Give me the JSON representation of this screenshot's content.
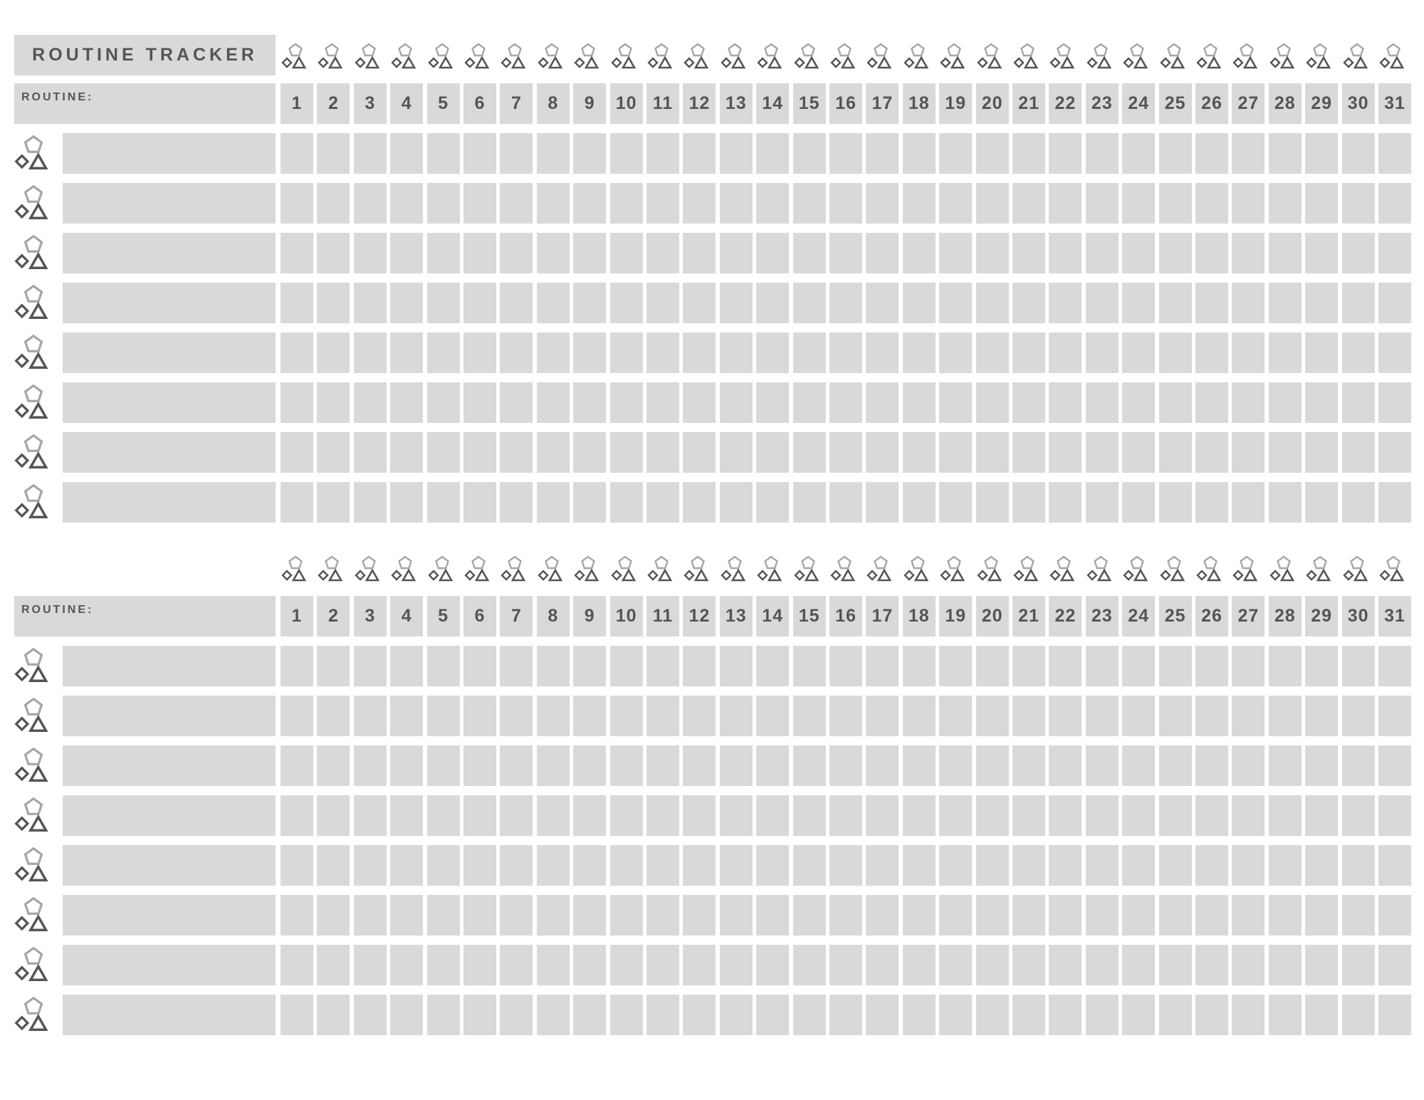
{
  "title": "ROUTINE TRACKER",
  "icons": {
    "pentagon": "pentagon-icon",
    "diamond": "diamond-icon",
    "triangle": "triangle-icon",
    "light_color": "#a6a6a6",
    "dark_color": "#555555"
  },
  "sections": [
    {
      "routine_label": "ROUTINE:",
      "days": [
        "1",
        "2",
        "3",
        "4",
        "5",
        "6",
        "7",
        "8",
        "9",
        "10",
        "11",
        "12",
        "13",
        "14",
        "15",
        "16",
        "17",
        "18",
        "19",
        "20",
        "21",
        "22",
        "23",
        "24",
        "25",
        "26",
        "27",
        "28",
        "29",
        "30",
        "31"
      ]
    },
    {
      "routine_label": "ROUTINE:",
      "days": [
        "1",
        "2",
        "3",
        "4",
        "5",
        "6",
        "7",
        "8",
        "9",
        "10",
        "11",
        "12",
        "13",
        "14",
        "15",
        "16",
        "17",
        "18",
        "19",
        "20",
        "21",
        "22",
        "23",
        "24",
        "25",
        "26",
        "27",
        "28",
        "29",
        "30",
        "31"
      ]
    }
  ]
}
